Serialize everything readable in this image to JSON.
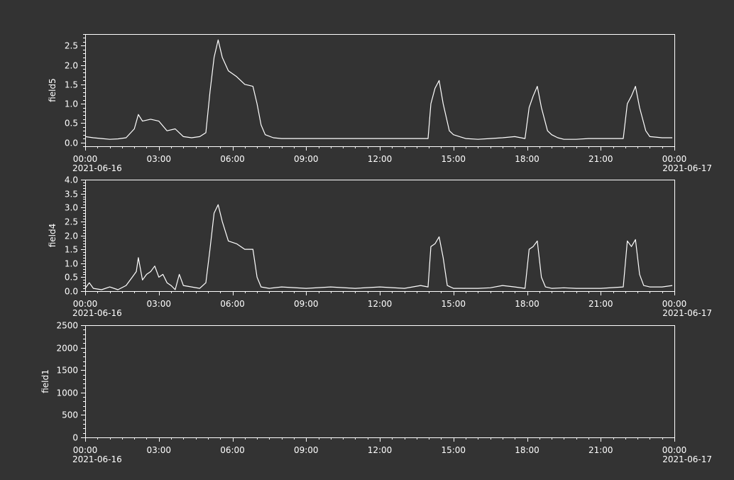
{
  "colors": {
    "background": "#333333",
    "foreground": "#ffffff"
  },
  "chart_data": [
    {
      "type": "line",
      "ylabel": "field5",
      "xlim": [
        "2021-06-16T00:00",
        "2021-06-17T00:00"
      ],
      "ylim": [
        -0.1,
        2.8
      ],
      "y_ticks": [
        "0.0",
        "0.5",
        "1.0",
        "1.5",
        "2.0",
        "2.5"
      ],
      "y_tick_values": [
        0,
        0.5,
        1.0,
        1.5,
        2.0,
        2.5
      ],
      "x_tick_labels": [
        "00:00",
        "03:00",
        "06:00",
        "09:00",
        "12:00",
        "15:00",
        "18:00",
        "21:00",
        "00:00"
      ],
      "x_date_labels": [
        "2021-06-16",
        "2021-06-17"
      ],
      "series": [
        {
          "x": [
            "00:00",
            "00:20",
            "00:40",
            "01:00",
            "01:20",
            "01:40",
            "02:00",
            "02:10",
            "02:20",
            "02:40",
            "03:00",
            "03:20",
            "03:40",
            "04:00",
            "04:20",
            "04:40",
            "04:55",
            "05:05",
            "05:15",
            "05:25",
            "05:35",
            "05:50",
            "06:10",
            "06:30",
            "06:50",
            "07:00",
            "07:10",
            "07:20",
            "07:40",
            "08:00",
            "09:00",
            "10:00",
            "11:00",
            "12:00",
            "13:00",
            "13:40",
            "13:58",
            "14:05",
            "14:15",
            "14:25",
            "14:35",
            "14:50",
            "15:00",
            "15:15",
            "15:30",
            "16:00",
            "16:30",
            "17:00",
            "17:30",
            "17:55",
            "18:05",
            "18:15",
            "18:25",
            "18:35",
            "18:50",
            "19:00",
            "19:15",
            "19:30",
            "20:00",
            "20:30",
            "21:00",
            "21:30",
            "21:55",
            "22:05",
            "22:15",
            "22:25",
            "22:35",
            "22:50",
            "23:00",
            "23:30",
            "23:55"
          ],
          "y": [
            0.15,
            0.12,
            0.1,
            0.08,
            0.09,
            0.12,
            0.35,
            0.72,
            0.55,
            0.6,
            0.55,
            0.3,
            0.35,
            0.15,
            0.12,
            0.15,
            0.25,
            1.3,
            2.2,
            2.65,
            2.2,
            1.85,
            1.7,
            1.5,
            1.45,
            1.0,
            0.45,
            0.2,
            0.12,
            0.1,
            0.1,
            0.1,
            0.1,
            0.1,
            0.1,
            0.1,
            0.1,
            1.0,
            1.4,
            1.6,
            1.0,
            0.3,
            0.2,
            0.15,
            0.1,
            0.08,
            0.1,
            0.12,
            0.15,
            0.1,
            0.9,
            1.2,
            1.45,
            0.9,
            0.3,
            0.2,
            0.12,
            0.08,
            0.08,
            0.1,
            0.1,
            0.1,
            0.1,
            1.0,
            1.2,
            1.45,
            0.9,
            0.3,
            0.15,
            0.12,
            0.12
          ]
        }
      ]
    },
    {
      "type": "line",
      "ylabel": "field4",
      "xlim": [
        "2021-06-16T00:00",
        "2021-06-17T00:00"
      ],
      "ylim": [
        0,
        4.0
      ],
      "y_ticks": [
        "0.0",
        "0.5",
        "1.0",
        "1.5",
        "2.0",
        "2.5",
        "3.0",
        "3.5",
        "4.0"
      ],
      "y_tick_values": [
        0,
        0.5,
        1.0,
        1.5,
        2.0,
        2.5,
        3.0,
        3.5,
        4.0
      ],
      "x_tick_labels": [
        "00:00",
        "03:00",
        "06:00",
        "09:00",
        "12:00",
        "15:00",
        "18:00",
        "21:00",
        "00:00"
      ],
      "x_date_labels": [
        "2021-06-16",
        "2021-06-17"
      ],
      "series": [
        {
          "x": [
            "00:00",
            "00:10",
            "00:20",
            "00:40",
            "01:00",
            "01:20",
            "01:40",
            "01:55",
            "02:05",
            "02:10",
            "02:20",
            "02:30",
            "02:40",
            "02:50",
            "03:00",
            "03:10",
            "03:20",
            "03:30",
            "03:40",
            "03:50",
            "04:00",
            "04:20",
            "04:40",
            "04:55",
            "05:05",
            "05:15",
            "05:25",
            "05:35",
            "05:50",
            "06:10",
            "06:30",
            "06:50",
            "07:00",
            "07:10",
            "07:30",
            "08:00",
            "09:00",
            "10:00",
            "11:00",
            "12:00",
            "13:00",
            "13:40",
            "13:58",
            "14:05",
            "14:15",
            "14:25",
            "14:35",
            "14:45",
            "15:00",
            "15:30",
            "16:00",
            "16:30",
            "17:00",
            "17:30",
            "17:55",
            "18:05",
            "18:15",
            "18:25",
            "18:35",
            "18:45",
            "19:00",
            "19:30",
            "20:00",
            "21:00",
            "21:55",
            "22:05",
            "22:15",
            "22:25",
            "22:35",
            "22:45",
            "23:00",
            "23:30",
            "23:55"
          ],
          "y": [
            0.1,
            0.3,
            0.1,
            0.05,
            0.15,
            0.05,
            0.2,
            0.5,
            0.7,
            1.2,
            0.4,
            0.6,
            0.7,
            0.9,
            0.5,
            0.6,
            0.3,
            0.2,
            0.05,
            0.6,
            0.2,
            0.15,
            0.1,
            0.3,
            1.5,
            2.8,
            3.1,
            2.5,
            1.8,
            1.7,
            1.5,
            1.5,
            0.5,
            0.15,
            0.1,
            0.15,
            0.1,
            0.15,
            0.1,
            0.15,
            0.1,
            0.2,
            0.15,
            1.6,
            1.7,
            1.95,
            1.2,
            0.2,
            0.1,
            0.1,
            0.1,
            0.12,
            0.2,
            0.15,
            0.1,
            1.5,
            1.6,
            1.8,
            0.5,
            0.15,
            0.1,
            0.12,
            0.1,
            0.1,
            0.15,
            1.8,
            1.6,
            1.85,
            0.6,
            0.2,
            0.15,
            0.15,
            0.2
          ]
        }
      ]
    },
    {
      "type": "line",
      "ylabel": "field1",
      "xlim": [
        "2021-06-16T00:00",
        "2021-06-17T00:00"
      ],
      "ylim": [
        0,
        2500
      ],
      "y_ticks": [
        "0",
        "500",
        "1000",
        "1500",
        "2000",
        "2500"
      ],
      "y_tick_values": [
        0,
        500,
        1000,
        1500,
        2000,
        2500
      ],
      "x_tick_labels": [
        "00:00",
        "03:00",
        "06:00",
        "09:00",
        "12:00",
        "15:00",
        "18:00",
        "21:00",
        "00:00"
      ],
      "x_date_labels": [
        "2021-06-16",
        "2021-06-17"
      ],
      "series": [
        {
          "x": [],
          "y": []
        }
      ]
    }
  ]
}
